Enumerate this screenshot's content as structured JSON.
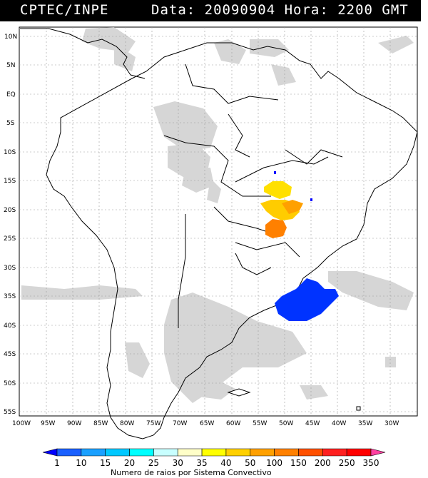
{
  "header": {
    "left": "CPTEC/INPE",
    "right": "Data: 20090904 Hora: 2200 GMT"
  },
  "lat_labels": [
    "10N",
    "5N",
    "EQ",
    "5S",
    "10S",
    "15S",
    "20S",
    "25S",
    "30S",
    "35S",
    "40S",
    "45S",
    "50S",
    "55S"
  ],
  "lon_labels": [
    "100W",
    "95W",
    "90W",
    "85W",
    "80W",
    "75W",
    "70W",
    "65W",
    "60W",
    "55W",
    "50W",
    "45W",
    "40W",
    "35W",
    "30W"
  ],
  "legend": {
    "values": [
      "1",
      "10",
      "15",
      "20",
      "25",
      "30",
      "35",
      "40",
      "50",
      "100",
      "150",
      "200",
      "250",
      "350"
    ],
    "colors": [
      "#0000ff",
      "#1a60ff",
      "#1aa0ff",
      "#00c8ff",
      "#00ffff",
      "#c8ffff",
      "#ffffc8",
      "#ffff00",
      "#ffd000",
      "#ffa000",
      "#ff8000",
      "#ff5000",
      "#ff2020",
      "#ff0000",
      "#ff40a0"
    ],
    "caption": "Numero de raios por Sistema Convectivo"
  }
}
